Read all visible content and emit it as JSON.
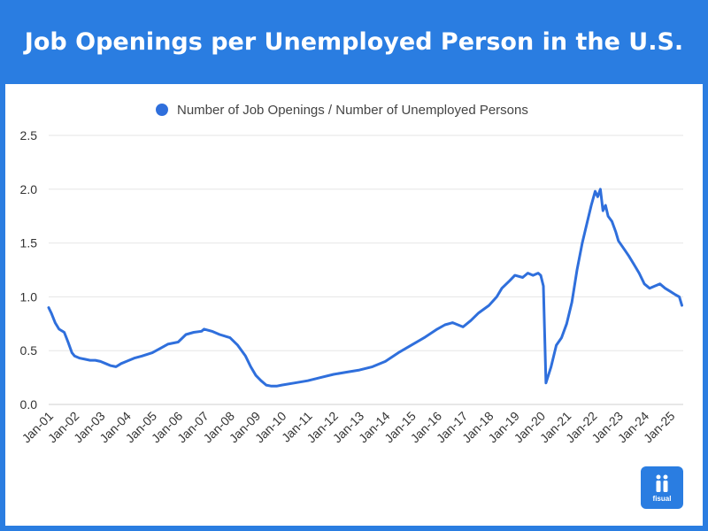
{
  "header": {
    "title": "Job Openings per Unemployed Person in the U.S."
  },
  "brand": {
    "name": "fisual",
    "color": "#2a7de1"
  },
  "chart_data": {
    "type": "line",
    "title": "Job Openings per Unemployed Person in the U.S.",
    "xlabel": "",
    "ylabel": "",
    "ylim": [
      0,
      2.5
    ],
    "yticks": [
      "0.0",
      "0.5",
      "1.0",
      "1.5",
      "2.0",
      "2.5"
    ],
    "yticks_values": [
      0,
      0.5,
      1.0,
      1.5,
      2.0,
      2.5
    ],
    "xticks": [
      "Jan-01",
      "Jan-02",
      "Jan-03",
      "Jan-04",
      "Jan-05",
      "Jan-06",
      "Jan-07",
      "Jan-08",
      "Jan-09",
      "Jan-10",
      "Jan-11",
      "Jan-12",
      "Jan-13",
      "Jan-14",
      "Jan-15",
      "Jan-16",
      "Jan-17",
      "Jan-18",
      "Jan-19",
      "Jan-20",
      "Jan-21",
      "Jan-22",
      "Jan-23",
      "Jan-24",
      "Jan-25"
    ],
    "xrange": [
      2001.0,
      2025.5
    ],
    "legend": "top-center",
    "grid": true,
    "series": [
      {
        "name": "Number of Job Openings / Number of Unemployed Persons",
        "color": "#2f6fdc",
        "x": [
          2001.0,
          2001.1,
          2001.25,
          2001.4,
          2001.6,
          2001.75,
          2001.9,
          2002.0,
          2002.2,
          2002.4,
          2002.6,
          2002.8,
          2003.0,
          2003.2,
          2003.4,
          2003.6,
          2003.8,
          2004.0,
          2004.3,
          2004.6,
          2005.0,
          2005.3,
          2005.6,
          2006.0,
          2006.3,
          2006.6,
          2006.9,
          2007.0,
          2007.3,
          2007.6,
          2008.0,
          2008.3,
          2008.6,
          2008.8,
          2009.0,
          2009.2,
          2009.4,
          2009.6,
          2009.8,
          2010.0,
          2010.5,
          2011.0,
          2011.5,
          2012.0,
          2012.5,
          2013.0,
          2013.5,
          2014.0,
          2014.5,
          2015.0,
          2015.5,
          2016.0,
          2016.3,
          2016.6,
          2017.0,
          2017.3,
          2017.6,
          2018.0,
          2018.3,
          2018.5,
          2018.8,
          2019.0,
          2019.3,
          2019.5,
          2019.7,
          2019.9,
          2020.0,
          2020.1,
          2020.2,
          2020.4,
          2020.6,
          2020.8,
          2021.0,
          2021.2,
          2021.4,
          2021.6,
          2021.8,
          2021.95,
          2022.1,
          2022.2,
          2022.3,
          2022.4,
          2022.5,
          2022.6,
          2022.75,
          2022.9,
          2023.0,
          2023.2,
          2023.4,
          2023.6,
          2023.8,
          2024.0,
          2024.2,
          2024.4,
          2024.6,
          2024.8,
          2025.0,
          2025.2,
          2025.35,
          2025.45
        ],
        "values": [
          0.9,
          0.85,
          0.76,
          0.7,
          0.67,
          0.58,
          0.48,
          0.45,
          0.43,
          0.42,
          0.41,
          0.41,
          0.4,
          0.38,
          0.36,
          0.35,
          0.38,
          0.4,
          0.43,
          0.45,
          0.48,
          0.52,
          0.56,
          0.58,
          0.65,
          0.67,
          0.68,
          0.7,
          0.68,
          0.65,
          0.62,
          0.55,
          0.45,
          0.35,
          0.27,
          0.22,
          0.18,
          0.17,
          0.17,
          0.18,
          0.2,
          0.22,
          0.25,
          0.28,
          0.3,
          0.32,
          0.35,
          0.4,
          0.48,
          0.55,
          0.62,
          0.7,
          0.74,
          0.76,
          0.72,
          0.78,
          0.85,
          0.92,
          1.0,
          1.08,
          1.15,
          1.2,
          1.18,
          1.22,
          1.2,
          1.22,
          1.2,
          1.1,
          0.2,
          0.35,
          0.55,
          0.62,
          0.75,
          0.95,
          1.25,
          1.5,
          1.7,
          1.85,
          1.98,
          1.93,
          2.0,
          1.8,
          1.85,
          1.75,
          1.7,
          1.6,
          1.52,
          1.45,
          1.38,
          1.3,
          1.22,
          1.12,
          1.08,
          1.1,
          1.12,
          1.08,
          1.05,
          1.02,
          1.0,
          0.92
        ]
      }
    ]
  }
}
